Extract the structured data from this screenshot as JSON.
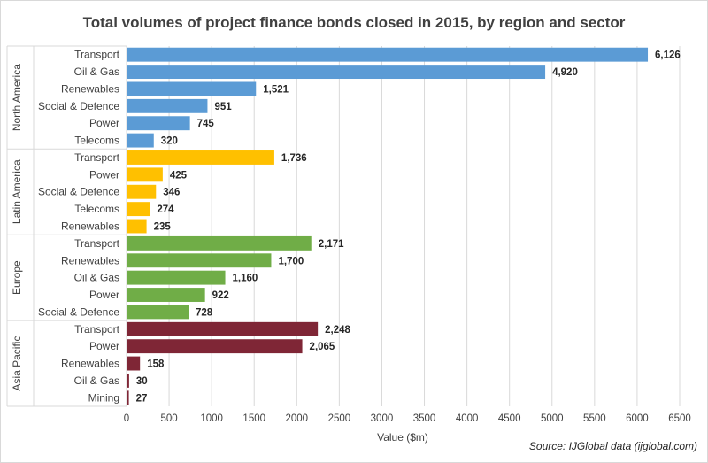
{
  "chart_data": {
    "type": "bar",
    "orientation": "horizontal",
    "title": "Total volumes of project finance bonds closed in 2015, by region and sector",
    "xlabel": "Value ($m)",
    "ylabel": "",
    "xlim": [
      0,
      6500
    ],
    "xticks": [
      0,
      500,
      1000,
      1500,
      2000,
      2500,
      3000,
      3500,
      4000,
      4500,
      5000,
      5500,
      6000,
      6500
    ],
    "grid": "vertical",
    "source": "Source: IJGlobal data (ijglobal.com)",
    "groups": [
      {
        "name": "North America",
        "color": "#5b9bd5",
        "categories": [
          "Transport",
          "Oil & Gas",
          "Renewables",
          "Social & Defence",
          "Power",
          "Telecoms"
        ],
        "values": [
          6126,
          4920,
          1521,
          951,
          745,
          320
        ],
        "labels": [
          "6,126",
          "4,920",
          "1,521",
          "951",
          "745",
          "320"
        ]
      },
      {
        "name": "Latin America",
        "color": "#ffc000",
        "categories": [
          "Transport",
          "Power",
          "Social & Defence",
          "Telecoms",
          "Renewables"
        ],
        "values": [
          1736,
          425,
          346,
          274,
          235
        ],
        "labels": [
          "1,736",
          "425",
          "346",
          "274",
          "235"
        ]
      },
      {
        "name": "Europe",
        "color": "#70ad47",
        "categories": [
          "Transport",
          "Renewables",
          "Oil & Gas",
          "Power",
          "Social & Defence"
        ],
        "values": [
          2171,
          1700,
          1160,
          922,
          728
        ],
        "labels": [
          "2,171",
          "1,700",
          "1,160",
          "922",
          "728"
        ]
      },
      {
        "name": "Asia Pacific",
        "color": "#7f2636",
        "categories": [
          "Transport",
          "Power",
          "Renewables",
          "Oil & Gas",
          "Mining"
        ],
        "values": [
          2248,
          2065,
          158,
          30,
          27
        ],
        "labels": [
          "2,248",
          "2,065",
          "158",
          "30",
          "27"
        ]
      }
    ]
  }
}
